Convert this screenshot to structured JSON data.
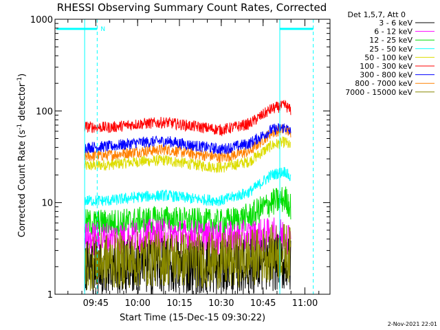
{
  "chart_data": {
    "type": "line",
    "title": "RHESSI Observing Summary Count Rates, Corrected",
    "xlabel": "Start Time (15-Dec-15 09:30:22)",
    "ylabel_main": "Corrected Count Rate (s",
    "ylabel_sup1": "-1",
    "ylabel_mid": " detector",
    "ylabel_sup2": "-1",
    "ylabel_end": ")",
    "ylabel_full": "Corrected Count Rate (s-1 detector-1)",
    "yscale": "log",
    "ylim": [
      1,
      1000
    ],
    "y_ticks": [
      {
        "value": 1,
        "label": "1"
      },
      {
        "value": 10,
        "label": "10"
      },
      {
        "value": 100,
        "label": "100"
      },
      {
        "value": 1000,
        "label": "1000"
      }
    ],
    "x_range": [
      "09:30:22",
      "11:09"
    ],
    "x_ticks": [
      {
        "t": "09:45",
        "label": "09:45"
      },
      {
        "t": "10:00",
        "label": "10:00"
      },
      {
        "t": "10:15",
        "label": "10:15"
      },
      {
        "t": "10:30",
        "label": "10:30"
      },
      {
        "t": "10:45",
        "label": "10:45"
      },
      {
        "t": "11:00",
        "label": "11:00"
      }
    ],
    "legend_header": "Det 1,5,7, Att 0",
    "legend_position": "right, outside plot",
    "series": [
      {
        "name": "3 - 6 keV",
        "color": "#000000",
        "x": [
          "09:41",
          "09:50",
          "10:00",
          "10:10",
          "10:20",
          "10:30",
          "10:40",
          "10:48",
          "10:53",
          "10:55"
        ],
        "values": [
          2.0,
          2.0,
          2.0,
          2.0,
          2.0,
          2.0,
          2.0,
          2.2,
          2.2,
          2.0
        ]
      },
      {
        "name": "6 - 12 keV",
        "color": "#ff00ff",
        "x": [
          "09:41",
          "09:50",
          "10:00",
          "10:10",
          "10:20",
          "10:30",
          "10:40",
          "10:48",
          "10:53",
          "10:55"
        ],
        "values": [
          4.0,
          4.0,
          4.2,
          4.4,
          4.2,
          4.0,
          4.2,
          4.4,
          4.4,
          4.0
        ]
      },
      {
        "name": "12 - 25 keV",
        "color": "#00dd00",
        "x": [
          "09:41",
          "09:50",
          "10:00",
          "10:10",
          "10:20",
          "10:30",
          "10:40",
          "10:48",
          "10:53",
          "10:55"
        ],
        "values": [
          6.0,
          6.0,
          6.3,
          6.6,
          6.2,
          6.0,
          7.0,
          10.0,
          11.0,
          9.0
        ]
      },
      {
        "name": "25 - 50 keV",
        "color": "#00ffff",
        "x": [
          "09:41",
          "09:50",
          "10:00",
          "10:10",
          "10:20",
          "10:30",
          "10:40",
          "10:48",
          "10:53",
          "10:55"
        ],
        "values": [
          10.5,
          10.5,
          11.5,
          12.0,
          11.0,
          10.5,
          13.0,
          20.0,
          22.0,
          18.0
        ]
      },
      {
        "name": "50 - 100 keV",
        "color": "#dddd00",
        "x": [
          "09:41",
          "09:50",
          "10:00",
          "10:10",
          "10:20",
          "10:30",
          "10:40",
          "10:48",
          "10:53",
          "10:55"
        ],
        "values": [
          25,
          26,
          28,
          29,
          26,
          24,
          28,
          42,
          46,
          40
        ]
      },
      {
        "name": "100 - 300 keV",
        "color": "#ff0000",
        "x": [
          "09:41",
          "09:50",
          "10:00",
          "10:10",
          "10:20",
          "10:30",
          "10:40",
          "10:48",
          "10:53",
          "10:55"
        ],
        "values": [
          67,
          66,
          72,
          75,
          68,
          62,
          72,
          105,
          115,
          100
        ]
      },
      {
        "name": "300 - 800 keV",
        "color": "#0000ff",
        "x": [
          "09:41",
          "09:50",
          "10:00",
          "10:10",
          "10:20",
          "10:30",
          "10:40",
          "10:48",
          "10:53",
          "10:55"
        ],
        "values": [
          40,
          41,
          45,
          47,
          42,
          38,
          44,
          62,
          66,
          58
        ]
      },
      {
        "name": "800 - 7000 keV",
        "color": "#ff8000",
        "x": [
          "09:41",
          "09:50",
          "10:00",
          "10:10",
          "10:20",
          "10:30",
          "10:40",
          "10:48",
          "10:53",
          "10:55"
        ],
        "values": [
          32,
          33,
          36,
          38,
          34,
          31,
          36,
          58,
          64,
          56
        ]
      },
      {
        "name": "7000 - 15000 keV",
        "color": "#888800",
        "x": [
          "09:41",
          "09:50",
          "10:00",
          "10:10",
          "10:20",
          "10:30",
          "10:40",
          "10:48",
          "10:53",
          "10:55"
        ],
        "values": [
          2.2,
          2.3,
          2.4,
          2.5,
          2.4,
          2.3,
          2.5,
          2.8,
          3.0,
          2.6
        ]
      }
    ],
    "annotations": [
      {
        "type": "attenuator-flag",
        "color": "#00ffff",
        "label": "N"
      }
    ],
    "footer_date": "2-Nov-2021 22:01"
  }
}
